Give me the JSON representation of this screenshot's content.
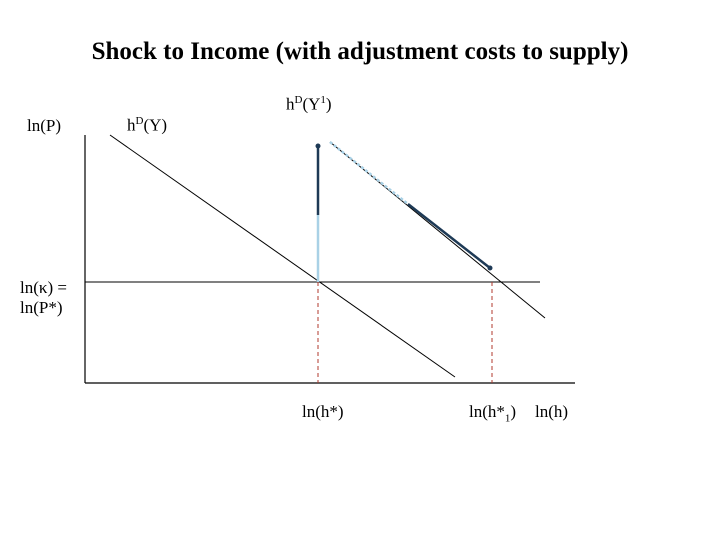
{
  "title": "Shock to Income (with adjustment costs to supply)",
  "axes": {
    "y_label": "ln(P)",
    "x_label": "ln(h)",
    "price_level_label_line1": "ln(κ) =",
    "price_level_label_line2": "ln(P*)",
    "h_star_label": "ln(h*)",
    "h_star1_label_main": "ln(h*",
    "h_star1_label_sub": "1",
    "h_star1_label_close": ")"
  },
  "curves": {
    "demand_initial": {
      "base": "h",
      "sup": "D",
      "arg": "(Y)"
    },
    "demand_shifted": {
      "base": "h",
      "sup": "D",
      "arg": "(Y",
      "arg_sup": "1",
      "arg_close": ")"
    }
  },
  "colors": {
    "axis": "#000000",
    "curve": "#000000",
    "path_dark": "#1e3a56",
    "path_light": "#a9d1e6",
    "guide": "#b03a2e"
  }
}
